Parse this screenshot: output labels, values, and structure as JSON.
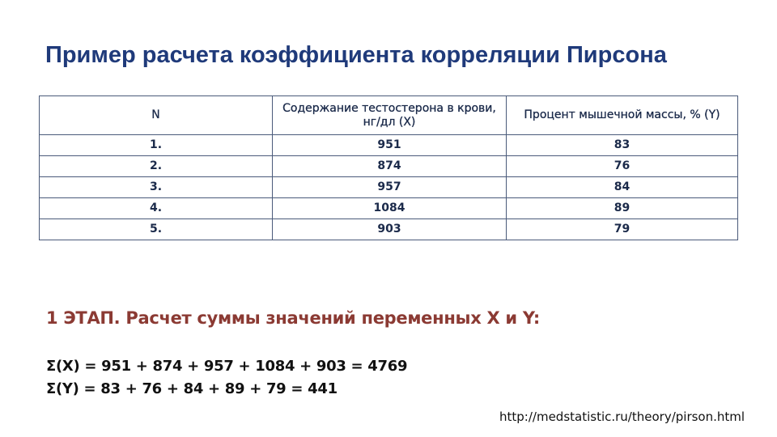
{
  "title": "Пример расчета коэффициента корреляции Пирсона",
  "table": {
    "headers": [
      "N",
      "Содержание тестостерона в крови, нг/дл (X)",
      "Процент мышечной массы, % (Y)"
    ],
    "rows": [
      [
        "1.",
        "951",
        "83"
      ],
      [
        "2.",
        "874",
        "76"
      ],
      [
        "3.",
        "957",
        "84"
      ],
      [
        "4.",
        "1084",
        "89"
      ],
      [
        "5.",
        "903",
        "79"
      ]
    ]
  },
  "stage": "1 ЭТАП. Расчет суммы значений переменных X и Y:",
  "sum_x": "Σ(X) = 951 + 874 + 957 + 1084 + 903 = 4769",
  "sum_y": "Σ(Y) = 83 + 76 + 84 + 89 + 79 = 441",
  "source": "http://medstatistic.ru/theory/pirson.html",
  "colors": {
    "title": "#1f3a7a",
    "stage": "#8b3a33"
  }
}
